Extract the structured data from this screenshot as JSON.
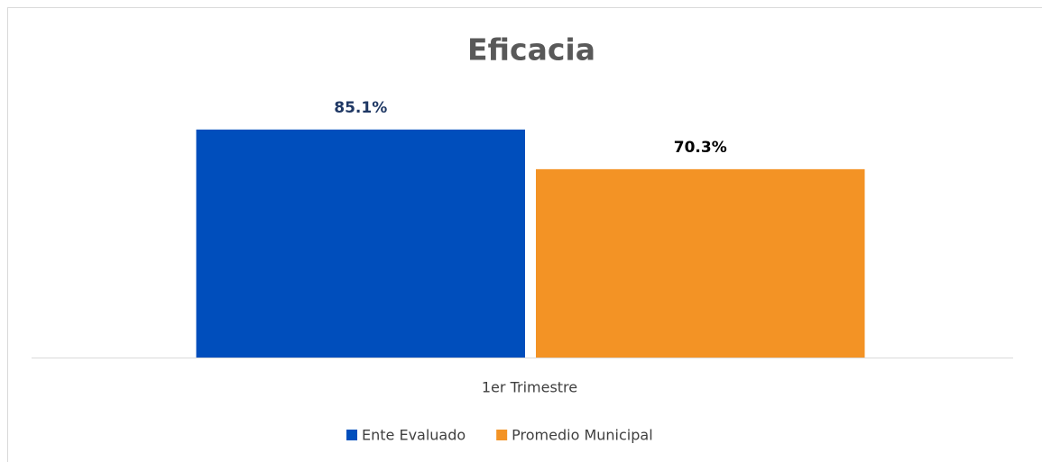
{
  "chart_data": {
    "type": "bar",
    "title": "Eficacia",
    "categories": [
      "1er Trimestre"
    ],
    "series": [
      {
        "name": "Ente Evaluado",
        "color": "#004ebc",
        "label_color": "#1f3864",
        "values": [
          85.1
        ],
        "value_labels": [
          "85.1%"
        ]
      },
      {
        "name": "Promedio Municipal",
        "color": "#f39325",
        "label_color": "#000000",
        "values": [
          70.3
        ],
        "value_labels": [
          "70.3%"
        ]
      }
    ],
    "legend": "bottom"
  }
}
